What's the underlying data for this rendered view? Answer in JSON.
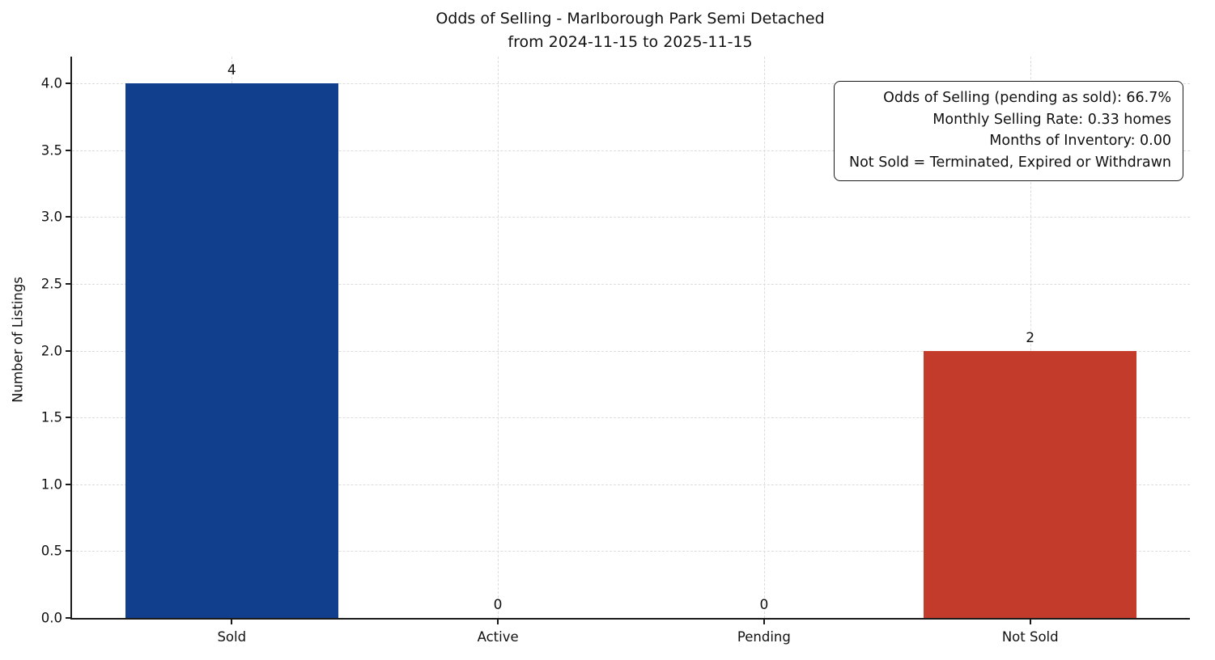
{
  "chart_data": {
    "type": "bar",
    "title": "Odds of Selling - Marlborough Park Semi Detached",
    "subtitle": "from 2024-11-15 to 2025-11-15",
    "ylabel": "Number of Listings",
    "categories": [
      "Sold",
      "Active",
      "Pending",
      "Not Sold"
    ],
    "values": [
      4,
      0,
      0,
      2
    ],
    "value_labels": [
      "4",
      "0",
      "0",
      "2"
    ],
    "bar_colors": [
      "#123e8e",
      "#888888",
      "#888888",
      "#c23b2b"
    ],
    "ylim": [
      0,
      4.2
    ],
    "yticks": [
      0.0,
      0.5,
      1.0,
      1.5,
      2.0,
      2.5,
      3.0,
      3.5,
      4.0
    ],
    "grid": "dashed",
    "legend_position": "none",
    "annotation": {
      "lines": [
        "Odds of Selling (pending as sold): 66.7%",
        "Monthly Selling Rate: 0.33 homes",
        "Months of Inventory: 0.00",
        "Not Sold = Terminated, Expired or Withdrawn"
      ]
    }
  }
}
